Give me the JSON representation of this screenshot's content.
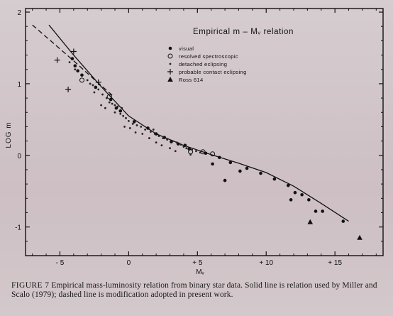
{
  "chart_data": {
    "type": "scatter",
    "title": "Empirical m – Mᵥ relation",
    "xlabel": "Mᵥ",
    "ylabel": "LOG m",
    "xlim": [
      -7.5,
      18.5
    ],
    "ylim": [
      -1.4,
      2.05
    ],
    "x_ticks": [
      -5,
      0,
      5,
      10,
      15
    ],
    "x_tick_labels": [
      "- 5",
      "0",
      "+ 5",
      "+ 10",
      "+ 15"
    ],
    "y_ticks": [
      -1,
      0,
      1,
      2
    ],
    "y_tick_labels": [
      "-1",
      "0",
      "1",
      "2"
    ],
    "legend": {
      "placement": "top-center",
      "entries": [
        {
          "marker": "dot",
          "label": "visual"
        },
        {
          "marker": "circle",
          "label": "resolved spectroscopic"
        },
        {
          "marker": "small-dot",
          "label": "detached eclipsing"
        },
        {
          "marker": "plus",
          "label": "probable contact eclipsing"
        },
        {
          "marker": "triangle",
          "label": "Ross 614"
        }
      ]
    },
    "series": [
      {
        "name": "visual",
        "marker": "dot",
        "points": [
          [
            -4.1,
            1.35
          ],
          [
            -3.9,
            1.25
          ],
          [
            -3.7,
            1.18
          ],
          [
            -3.4,
            1.12
          ],
          [
            -2.4,
            0.95
          ],
          [
            -1.3,
            0.78
          ],
          [
            -0.9,
            0.66
          ],
          [
            -0.6,
            0.62
          ],
          [
            0.4,
            0.47
          ],
          [
            1.4,
            0.38
          ],
          [
            2.0,
            0.3
          ],
          [
            2.6,
            0.25
          ],
          [
            3.1,
            0.19
          ],
          [
            3.6,
            0.16
          ],
          [
            4.1,
            0.14
          ],
          [
            4.4,
            0.09
          ],
          [
            5.6,
            0.03
          ],
          [
            6.6,
            -0.03
          ],
          [
            7.4,
            -0.1
          ],
          [
            8.6,
            -0.18
          ],
          [
            9.6,
            -0.25
          ],
          [
            10.6,
            -0.33
          ],
          [
            11.6,
            -0.42
          ],
          [
            12.1,
            -0.52
          ],
          [
            12.6,
            -0.55
          ],
          [
            13.1,
            -0.62
          ],
          [
            13.6,
            -0.78
          ],
          [
            14.1,
            -0.78
          ],
          [
            15.6,
            -0.92
          ],
          [
            7.0,
            -0.35
          ],
          [
            11.8,
            -0.62
          ],
          [
            6.1,
            -0.12
          ],
          [
            8.1,
            -0.22
          ]
        ]
      },
      {
        "name": "resolved spectroscopic",
        "marker": "circle",
        "points": [
          [
            -3.4,
            1.05
          ],
          [
            -1.4,
            0.82
          ],
          [
            4.5,
            0.05
          ],
          [
            5.4,
            0.05
          ],
          [
            6.1,
            0.02
          ]
        ]
      },
      {
        "name": "detached eclipsing",
        "marker": "small-dot",
        "points": [
          [
            -4.3,
            1.3
          ],
          [
            -3.9,
            1.2
          ],
          [
            -3.0,
            1.05
          ],
          [
            -2.8,
            1.0
          ],
          [
            -2.6,
            0.98
          ],
          [
            -2.2,
            0.92
          ],
          [
            -1.9,
            0.85
          ],
          [
            -1.6,
            0.8
          ],
          [
            -1.4,
            0.74
          ],
          [
            -1.2,
            0.72
          ],
          [
            -1.0,
            0.7
          ],
          [
            -0.8,
            0.68
          ],
          [
            -0.6,
            0.58
          ],
          [
            -0.4,
            0.55
          ],
          [
            -0.2,
            0.52
          ],
          [
            0.0,
            0.48
          ],
          [
            0.3,
            0.44
          ],
          [
            0.6,
            0.42
          ],
          [
            0.9,
            0.4
          ],
          [
            1.2,
            0.36
          ],
          [
            1.6,
            0.33
          ],
          [
            1.9,
            0.3
          ],
          [
            2.2,
            0.27
          ],
          [
            2.5,
            0.24
          ],
          [
            2.8,
            0.22
          ],
          [
            3.2,
            0.2
          ],
          [
            3.5,
            0.18
          ],
          [
            3.8,
            0.15
          ],
          [
            4.0,
            0.12
          ],
          [
            4.2,
            0.1
          ],
          [
            4.6,
            0.08
          ],
          [
            4.9,
            0.06
          ],
          [
            5.2,
            0.04
          ],
          [
            -2.0,
            0.7
          ],
          [
            -1.0,
            0.6
          ],
          [
            0.1,
            0.38
          ],
          [
            1.0,
            0.3
          ],
          [
            2.0,
            0.18
          ],
          [
            3.0,
            0.1
          ],
          [
            -0.3,
            0.4
          ],
          [
            0.5,
            0.32
          ],
          [
            -1.7,
            0.66
          ],
          [
            1.5,
            0.24
          ],
          [
            2.4,
            0.14
          ],
          [
            3.4,
            0.06
          ],
          [
            4.5,
            0.01
          ],
          [
            -2.5,
            0.88
          ],
          [
            -0.5,
            0.66
          ],
          [
            1.8,
            0.36
          ]
        ]
      },
      {
        "name": "probable contact eclipsing",
        "marker": "plus",
        "points": [
          [
            -5.2,
            1.33
          ],
          [
            -4.4,
            0.92
          ],
          [
            -2.2,
            1.02
          ],
          [
            -4.0,
            1.45
          ]
        ]
      },
      {
        "name": "Ross 614",
        "marker": "triangle",
        "points": [
          [
            13.2,
            -0.93
          ],
          [
            16.8,
            -1.15
          ]
        ]
      }
    ],
    "lines": [
      {
        "name": "Solid line (Miller and Scalo 1979)",
        "style": "solid",
        "points": [
          [
            -5.8,
            1.82
          ],
          [
            -4.0,
            1.4
          ],
          [
            -2.0,
            0.96
          ],
          [
            0.0,
            0.55
          ],
          [
            2.0,
            0.3
          ],
          [
            4.0,
            0.14
          ],
          [
            6.0,
            0.01
          ],
          [
            8.0,
            -0.11
          ],
          [
            10.0,
            -0.24
          ],
          [
            12.0,
            -0.43
          ],
          [
            14.0,
            -0.67
          ],
          [
            16.0,
            -0.92
          ]
        ]
      },
      {
        "name": "Dashed line (modification adopted in present work)",
        "style": "dashed",
        "points": [
          [
            -7.0,
            1.82
          ],
          [
            -5.5,
            1.57
          ],
          [
            -4.0,
            1.32
          ],
          [
            -2.5,
            1.06
          ],
          [
            -1.2,
            0.84
          ]
        ]
      }
    ]
  },
  "caption": {
    "label": "FIGURE 7",
    "text": "Empirical mass-luminosity relation from binary star data. Solid line is relation used by Miller and Scalo (1979); dashed line is modification adopted in present work."
  }
}
